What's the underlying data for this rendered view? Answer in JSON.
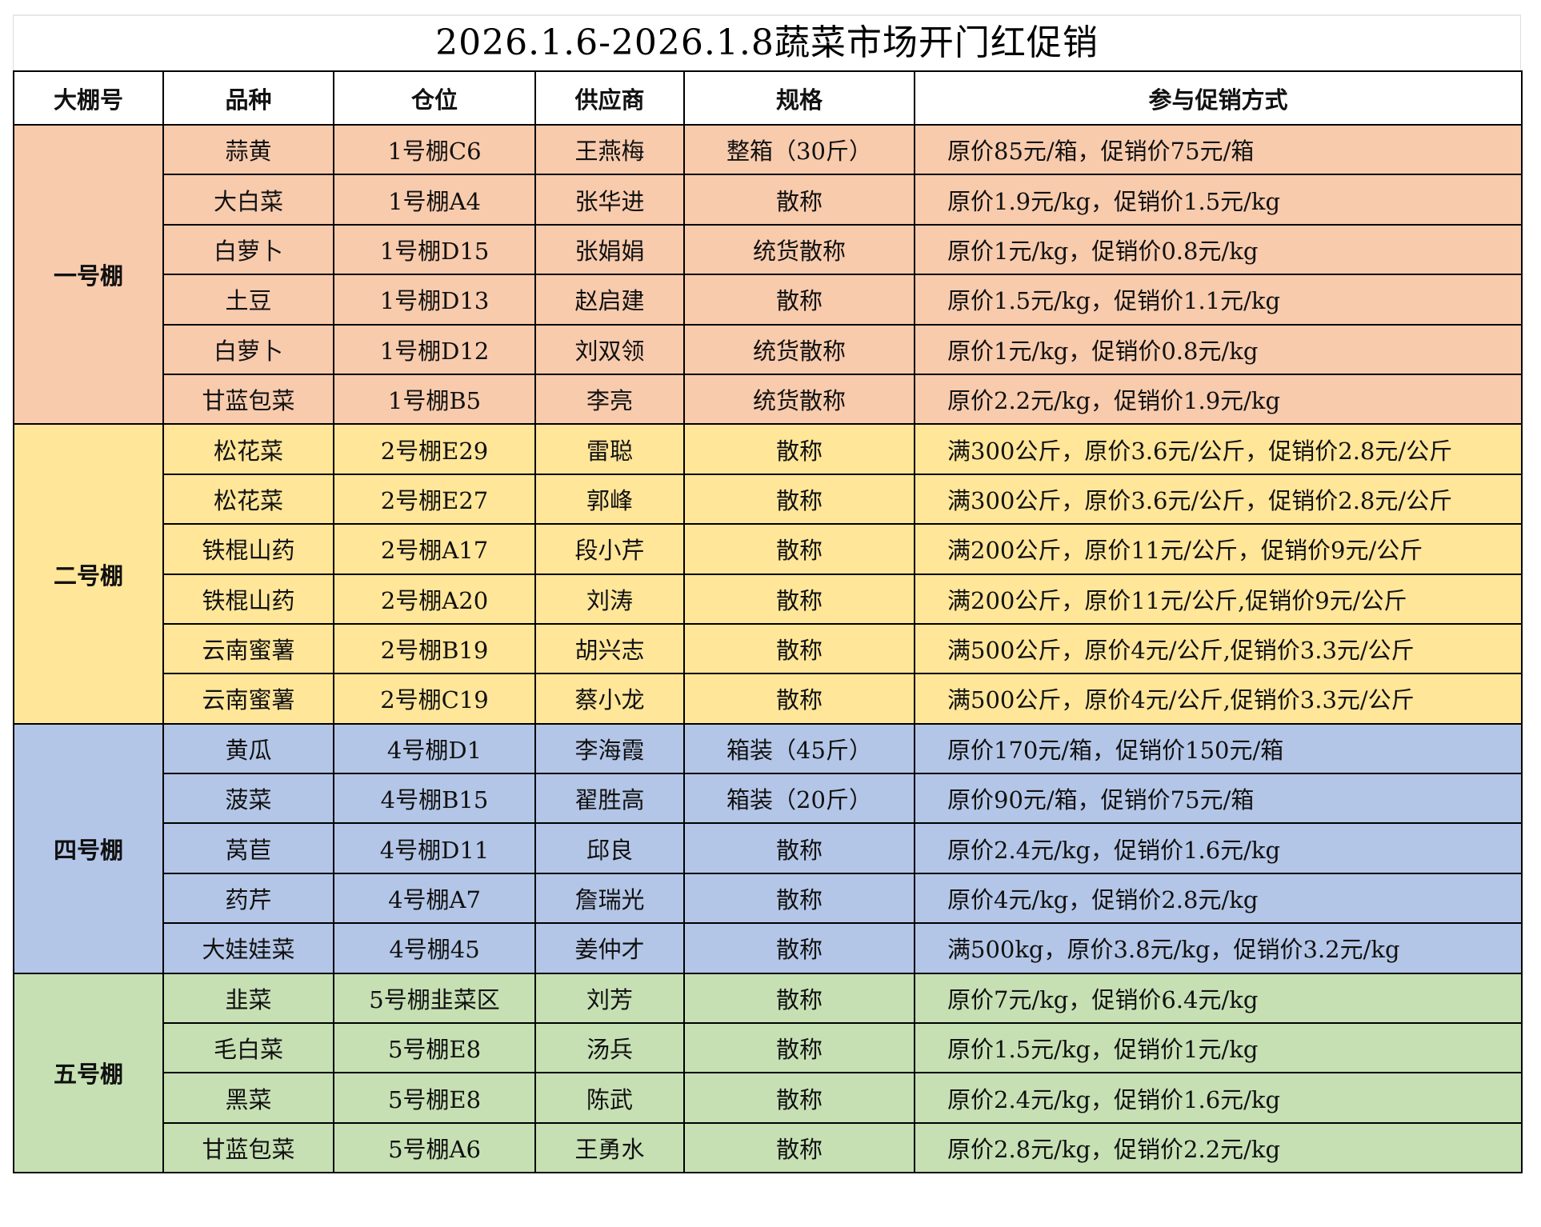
{
  "title": "2026.1.6-2026.1.8蔬菜市场开门红促销",
  "colors": {
    "orange": "#F8CBAD",
    "yellow": "#FFE699",
    "blue": "#B4C6E7",
    "green": "#C6E0B4"
  },
  "headers": [
    "大棚号",
    "品种",
    "仓位",
    "供应商",
    "规格",
    "参与促销方式"
  ],
  "groups": [
    {
      "shed": "一号棚",
      "color": "orange",
      "rows": [
        [
          "蒜黄",
          "1号棚C6",
          "王燕梅",
          "整箱（30斤）",
          "原价85元/箱，促销价75元/箱"
        ],
        [
          "大白菜",
          "1号棚A4",
          "张华进",
          "散称",
          "原价1.9元/kg，促销价1.5元/kg"
        ],
        [
          "白萝卜",
          "1号棚D15",
          "张娟娟",
          "统货散称",
          "原价1元/kg，促销价0.8元/kg"
        ],
        [
          "土豆",
          "1号棚D13",
          "赵启建",
          "散称",
          "原价1.5元/kg，促销价1.1元/kg"
        ],
        [
          "白萝卜",
          "1号棚D12",
          "刘双领",
          "统货散称",
          "原价1元/kg，促销价0.8元/kg"
        ],
        [
          "甘蓝包菜",
          "1号棚B5",
          "李亮",
          "统货散称",
          "原价2.2元/kg，促销价1.9元/kg"
        ]
      ]
    },
    {
      "shed": "二号棚",
      "color": "yellow",
      "rows": [
        [
          "松花菜",
          "2号棚E29",
          "雷聪",
          "散称",
          "满300公斤，原价3.6元/公斤，促销价2.8元/公斤"
        ],
        [
          "松花菜",
          "2号棚E27",
          "郭峰",
          "散称",
          "满300公斤，原价3.6元/公斤，促销价2.8元/公斤"
        ],
        [
          "铁棍山药",
          "2号棚A17",
          "段小芹",
          "散称",
          "满200公斤，原价11元/公斤，促销价9元/公斤"
        ],
        [
          "铁棍山药",
          "2号棚A20",
          "刘涛",
          "散称",
          "满200公斤，原价11元/公斤,促销价9元/公斤"
        ],
        [
          "云南蜜薯",
          "2号棚B19",
          "胡兴志",
          "散称",
          "满500公斤，原价4元/公斤,促销价3.3元/公斤"
        ],
        [
          "云南蜜薯",
          "2号棚C19",
          "蔡小龙",
          "散称",
          "满500公斤，原价4元/公斤,促销价3.3元/公斤"
        ]
      ]
    },
    {
      "shed": "四号棚",
      "color": "blue",
      "rows": [
        [
          "黄瓜",
          "4号棚D1",
          "李海霞",
          "箱装（45斤）",
          "原价170元/箱，促销价150元/箱"
        ],
        [
          "菠菜",
          "4号棚B15",
          "翟胜高",
          "箱装（20斤）",
          "原价90元/箱，促销价75元/箱"
        ],
        [
          "莴苣",
          "4号棚D11",
          "邱良",
          "散称",
          "原价2.4元/kg，促销价1.6元/kg"
        ],
        [
          "药芹",
          "4号棚A7",
          "詹瑞光",
          "散称",
          "原价4元/kg，促销价2.8元/kg"
        ],
        [
          "大娃娃菜",
          "4号棚45",
          "姜仲才",
          "散称",
          "满500kg，原价3.8元/kg，促销价3.2元/kg"
        ]
      ]
    },
    {
      "shed": "五号棚",
      "color": "green",
      "rows": [
        [
          "韭菜",
          "5号棚韭菜区",
          "刘芳",
          "散称",
          "原价7元/kg，促销价6.4元/kg"
        ],
        [
          "毛白菜",
          "5号棚E8",
          "汤兵",
          "散称",
          "原价1.5元/kg，促销价1元/kg"
        ],
        [
          "黑菜",
          "5号棚E8",
          "陈武",
          "散称",
          "原价2.4元/kg，促销价1.6元/kg"
        ],
        [
          "甘蓝包菜",
          "5号棚A6",
          "王勇水",
          "散称",
          "原价2.8元/kg，促销价2.2元/kg"
        ]
      ]
    }
  ]
}
